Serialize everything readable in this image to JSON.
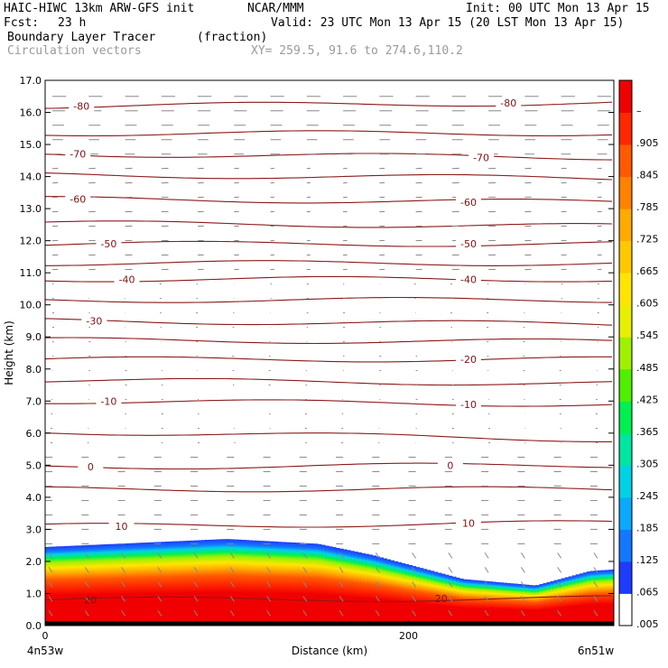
{
  "header": {
    "model": "HAIC-HIWC 13km ARW-GFS init",
    "org": "NCAR/MMM",
    "init": "Init: 00 UTC Mon 13 Apr 15",
    "fcst_label": "Fcst:",
    "fcst_value": "23 h",
    "valid": "Valid: 23 UTC Mon 13 Apr 15 (20 LST Mon 13 Apr 15)",
    "field": "Boundary Layer Tracer",
    "field_unit": "(fraction)",
    "vectors": "Circulation vectors",
    "xy": "XY= 259.5, 91.6 to 274.6,110.2"
  },
  "chart_data": {
    "type": "heatmap",
    "xlabel": "Distance (km)",
    "ylabel": "Height (km)",
    "xlim": [
      0,
      313
    ],
    "ylim": [
      0,
      17
    ],
    "x_ticks": [
      {
        "value": 0,
        "label": "0"
      },
      {
        "value": 200,
        "label": "200"
      }
    ],
    "y_ticks": [
      "0.0",
      "1.0",
      "2.0",
      "3.0",
      "4.0",
      "5.0",
      "6.0",
      "7.0",
      "8.0",
      "9.0",
      "10.0",
      "11.0",
      "12.0",
      "13.0",
      "14.0",
      "15.0",
      "16.0",
      "17.0"
    ],
    "x_endpoint_labels": [
      "4n53w",
      "6n51w"
    ],
    "colorbar": {
      "labels": [
        ".005",
        ".065",
        ".125",
        ".185",
        ".245",
        ".305",
        ".365",
        ".425",
        ".485",
        ".545",
        ".605",
        ".665",
        ".725",
        ".785",
        ".845",
        ".905",
        "–"
      ],
      "colors": [
        "#ffffff",
        "#1e3cff",
        "#1478ff",
        "#0aaaff",
        "#00d2e6",
        "#00e6a0",
        "#00f050",
        "#50f000",
        "#a0f000",
        "#e6f000",
        "#ffe600",
        "#ffc800",
        "#ffaa00",
        "#ff8200",
        "#ff5a00",
        "#ff2800",
        "#f00000"
      ]
    },
    "tracer_top_km": [
      {
        "x": 0,
        "z": 2.45
      },
      {
        "x": 100,
        "z": 2.7
      },
      {
        "x": 150,
        "z": 2.55
      },
      {
        "x": 180,
        "z": 2.2
      },
      {
        "x": 200,
        "z": 1.9
      },
      {
        "x": 230,
        "z": 1.45
      },
      {
        "x": 270,
        "z": 1.25
      },
      {
        "x": 300,
        "z": 1.7
      },
      {
        "x": 313,
        "z": 1.75
      }
    ],
    "contour_labels": [
      {
        "x": 20,
        "z": 16.2,
        "label": "-80"
      },
      {
        "x": 255,
        "z": 16.3,
        "label": "-80"
      },
      {
        "x": 18,
        "z": 14.7,
        "label": "-70"
      },
      {
        "x": 240,
        "z": 14.6,
        "label": "-70"
      },
      {
        "x": 18,
        "z": 13.3,
        "label": "-60"
      },
      {
        "x": 233,
        "z": 13.2,
        "label": "-60"
      },
      {
        "x": 35,
        "z": 11.9,
        "label": "-50"
      },
      {
        "x": 233,
        "z": 11.9,
        "label": "-50"
      },
      {
        "x": 45,
        "z": 10.8,
        "label": "-40"
      },
      {
        "x": 233,
        "z": 10.8,
        "label": "-40"
      },
      {
        "x": 27,
        "z": 9.5,
        "label": "-30"
      },
      {
        "x": 233,
        "z": 8.3,
        "label": "-20"
      },
      {
        "x": 35,
        "z": 7.0,
        "label": "-10"
      },
      {
        "x": 233,
        "z": 6.9,
        "label": "-10"
      },
      {
        "x": 25,
        "z": 4.95,
        "label": "0"
      },
      {
        "x": 223,
        "z": 5.0,
        "label": "0"
      },
      {
        "x": 42,
        "z": 3.1,
        "label": "10"
      },
      {
        "x": 233,
        "z": 3.2,
        "label": "10"
      },
      {
        "x": 25,
        "z": 0.8,
        "label": "20"
      },
      {
        "x": 218,
        "z": 0.85,
        "label": "20"
      }
    ]
  }
}
